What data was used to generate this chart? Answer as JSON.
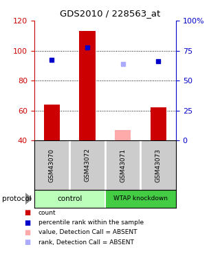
{
  "title": "GDS2010 / 228563_at",
  "samples": [
    "GSM43070",
    "GSM43072",
    "GSM43071",
    "GSM43073"
  ],
  "bar_values": [
    64,
    113,
    47,
    62
  ],
  "bar_colors": [
    "#cc0000",
    "#cc0000",
    "#ffaaaa",
    "#cc0000"
  ],
  "rank_values": [
    94,
    102,
    91,
    93
  ],
  "rank_colors": [
    "#0000cc",
    "#0000cc",
    "#aaaaff",
    "#0000cc"
  ],
  "ylim_left": [
    40,
    120
  ],
  "left_ticks": [
    40,
    60,
    80,
    100,
    120
  ],
  "dotted_lines": [
    60,
    80,
    100
  ],
  "right_ticks": [
    0,
    25,
    50,
    75,
    100
  ],
  "right_tick_labels": [
    "0",
    "25",
    "50",
    "75",
    "100%"
  ],
  "left_axis_color": "#cc0000",
  "right_axis_color": "#0000cc",
  "bg_color": "#ffffff",
  "label_area_bg": "#cccccc",
  "group_control_color": "#bbffbb",
  "group_knockdown_color": "#44cc44",
  "legend_items": [
    {
      "color": "#cc0000",
      "label": "count"
    },
    {
      "color": "#0000cc",
      "label": "percentile rank within the sample"
    },
    {
      "color": "#ffaaaa",
      "label": "value, Detection Call = ABSENT"
    },
    {
      "color": "#aaaaff",
      "label": "rank, Detection Call = ABSENT"
    }
  ]
}
